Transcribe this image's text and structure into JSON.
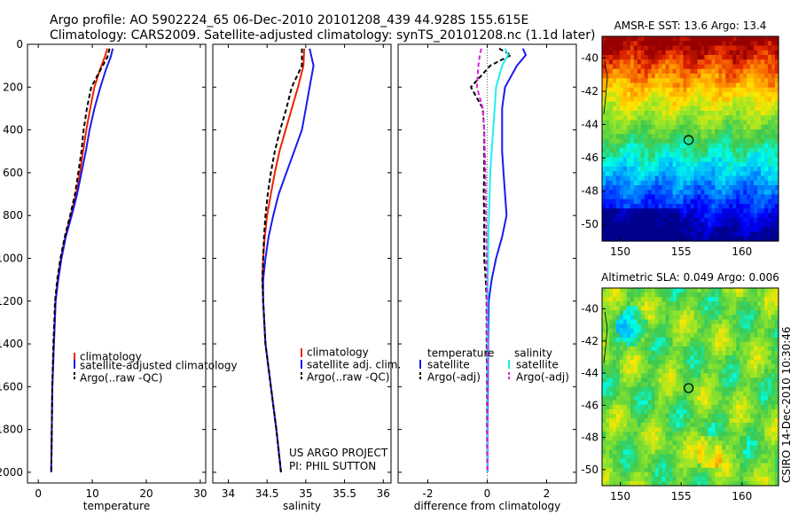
{
  "header": {
    "title_line1": "Argo profile: AO 5902224_65 06-Dec-2010 20101208_439 44.928S 155.615E",
    "title_line2": "Climatology: CARS2009. Satellite-adjusted climatology: synTS_20101208.nc (1.1d later)"
  },
  "colors": {
    "climatology": "#ee2200",
    "satellite": "#1a1aee",
    "argo": "#000000",
    "sal_satellite": "#22eeee",
    "sal_argo": "#dd22dd"
  },
  "credit": {
    "line1": "US ARGO PROJECT",
    "line2": "PI: PHIL SUTTON"
  },
  "side_stamp": "CSIRO 14-Dec-2010 10:30:46",
  "chart_data": [
    {
      "id": "temperature",
      "type": "line",
      "xlabel": "temperature",
      "ylabel": "",
      "xlim": [
        -2,
        31
      ],
      "ylim": [
        2050,
        0
      ],
      "xticks": [
        0,
        10,
        20,
        30
      ],
      "yticks": [
        0,
        200,
        400,
        600,
        800,
        1000,
        1200,
        1400,
        1600,
        1800,
        2000
      ],
      "legend": [
        "climatology",
        "satellite-adjusted climatology",
        "Argo(..raw -QC)"
      ],
      "series": [
        {
          "name": "climatology",
          "color": "#ee2200",
          "dash": "",
          "x": [
            12.8,
            12.3,
            11.4,
            10.4,
            9.6,
            8.9,
            8.3,
            7.7,
            7.0,
            6.0,
            5.0,
            4.2,
            3.6,
            3.2,
            2.9,
            2.6,
            2.5,
            2.4
          ],
          "y": [
            20,
            60,
            120,
            200,
            300,
            400,
            500,
            600,
            700,
            800,
            900,
            1000,
            1100,
            1200,
            1400,
            1600,
            1800,
            2000
          ]
        },
        {
          "name": "satellite-adjusted climatology",
          "color": "#1a1aee",
          "dash": "",
          "x": [
            13.8,
            13.4,
            12.5,
            11.5,
            10.4,
            9.5,
            8.8,
            8.0,
            7.2,
            6.2,
            5.1,
            4.3,
            3.7,
            3.2,
            2.9,
            2.6,
            2.5,
            2.4
          ],
          "y": [
            20,
            60,
            120,
            200,
            300,
            400,
            500,
            600,
            700,
            800,
            900,
            1000,
            1100,
            1200,
            1400,
            1600,
            1800,
            2000
          ]
        },
        {
          "name": "Argo(..raw -QC)",
          "color": "#000000",
          "dash": "5,3",
          "x": [
            13.2,
            12.8,
            11.5,
            9.8,
            9.0,
            8.4,
            8.0,
            7.4,
            6.8,
            5.9,
            4.9,
            4.1,
            3.5,
            3.1,
            2.8,
            2.6,
            2.5,
            2.4
          ],
          "y": [
            20,
            60,
            120,
            200,
            300,
            400,
            500,
            600,
            700,
            800,
            900,
            1000,
            1100,
            1200,
            1400,
            1600,
            1800,
            2000
          ]
        }
      ]
    },
    {
      "id": "salinity",
      "type": "line",
      "xlabel": "salinity",
      "ylabel": "",
      "xlim": [
        33.8,
        36.1
      ],
      "ylim": [
        2050,
        0
      ],
      "xticks": [
        34,
        34.5,
        35,
        35.5,
        36
      ],
      "legend": [
        "climatology",
        "satellite adj. clim.",
        "Argo(..raw -QC)"
      ],
      "series": [
        {
          "name": "climatology",
          "color": "#ee2200",
          "dash": "",
          "x": [
            34.98,
            34.97,
            34.9,
            34.82,
            34.74,
            34.66,
            34.6,
            34.55,
            34.5,
            34.47,
            34.45,
            34.44,
            34.45,
            34.48,
            34.55,
            34.62,
            34.68
          ],
          "y": [
            20,
            100,
            200,
            300,
            400,
            500,
            600,
            700,
            800,
            900,
            1000,
            1100,
            1200,
            1400,
            1600,
            1800,
            2000
          ]
        },
        {
          "name": "satellite adj. clim.",
          "color": "#1a1aee",
          "dash": "",
          "x": [
            35.05,
            35.1,
            35.05,
            35.0,
            34.95,
            34.85,
            34.75,
            34.65,
            34.58,
            34.52,
            34.48,
            34.45,
            34.45,
            34.48,
            34.55,
            34.62,
            34.68
          ],
          "y": [
            20,
            100,
            200,
            300,
            400,
            500,
            600,
            700,
            800,
            900,
            1000,
            1100,
            1200,
            1400,
            1600,
            1800,
            2000
          ]
        },
        {
          "name": "Argo(..raw -QC)",
          "color": "#000000",
          "dash": "5,3",
          "x": [
            34.95,
            34.95,
            34.82,
            34.75,
            34.67,
            34.6,
            34.55,
            34.51,
            34.48,
            34.46,
            34.45,
            34.44,
            34.45,
            34.48,
            34.55,
            34.62,
            34.68
          ],
          "y": [
            20,
            100,
            200,
            300,
            400,
            500,
            600,
            700,
            800,
            900,
            1000,
            1100,
            1200,
            1400,
            1600,
            1800,
            2000
          ]
        }
      ]
    },
    {
      "id": "difference",
      "type": "line",
      "xlabel": "difference from climatology",
      "ylabel": "",
      "xlim": [
        -3,
        3
      ],
      "ylim": [
        2050,
        0
      ],
      "xticks": [
        -2,
        0,
        2
      ],
      "legend_temperature": [
        "temperature",
        "satellite",
        "Argo(-adj)"
      ],
      "legend_salinity": [
        "salinity",
        "satellite",
        "Argo(-adj)"
      ],
      "series": [
        {
          "name": "temperature satellite",
          "color": "#1a1aee",
          "dash": "",
          "x": [
            1.2,
            1.3,
            1.0,
            0.6,
            0.5,
            0.5,
            0.5,
            0.55,
            0.6,
            0.65,
            0.5,
            0.3,
            0.15,
            0.05,
            0.03,
            0.02,
            0.01,
            0.01
          ],
          "y": [
            20,
            50,
            100,
            200,
            300,
            400,
            500,
            600,
            700,
            800,
            900,
            1000,
            1100,
            1200,
            1400,
            1600,
            1800,
            2000
          ]
        },
        {
          "name": "temperature Argo(-adj)",
          "color": "#000000",
          "dash": "5,3",
          "x": [
            0.4,
            0.8,
            0.1,
            -0.55,
            -0.15,
            -0.1,
            -0.1,
            -0.1,
            -0.12,
            -0.1,
            -0.1,
            -0.1,
            -0.05,
            -0.02,
            -0.02,
            -0.01,
            -0.01,
            0.0
          ],
          "y": [
            20,
            50,
            100,
            200,
            300,
            400,
            500,
            600,
            700,
            800,
            900,
            1000,
            1100,
            1200,
            1400,
            1600,
            1800,
            2000
          ]
        },
        {
          "name": "salinity satellite",
          "color": "#22eeee",
          "dash": "",
          "x": [
            0.6,
            0.7,
            0.5,
            0.3,
            0.25,
            0.2,
            0.15,
            0.1,
            0.08,
            0.06,
            0.04,
            0.03,
            0.02,
            0.01,
            0.01,
            0.0,
            0.0,
            0.0
          ],
          "y": [
            20,
            50,
            100,
            200,
            300,
            400,
            500,
            600,
            700,
            800,
            900,
            1000,
            1100,
            1200,
            1400,
            1600,
            1800,
            2000
          ]
        },
        {
          "name": "salinity Argo(-adj)",
          "color": "#dd22dd",
          "dash": "5,3",
          "x": [
            -0.2,
            -0.25,
            -0.3,
            -0.35,
            -0.15,
            -0.1,
            -0.08,
            -0.06,
            -0.05,
            -0.04,
            -0.03,
            -0.02,
            -0.02,
            -0.01,
            -0.01,
            0.0,
            0.0,
            0.0
          ],
          "y": [
            20,
            50,
            100,
            200,
            300,
            400,
            500,
            600,
            700,
            800,
            900,
            1000,
            1100,
            1200,
            1400,
            1600,
            1800,
            2000
          ]
        }
      ]
    },
    {
      "id": "sst_map",
      "type": "heatmap",
      "title": "AMSR-E SST: 13.6  Argo: 13.4",
      "xticks": [
        150,
        155,
        160
      ],
      "yticks": [
        -40,
        -42,
        -44,
        -46,
        -48,
        -50
      ],
      "xlim": [
        148.5,
        163.0
      ],
      "ylim": [
        -51,
        -38.7
      ],
      "marker": {
        "lon": 155.615,
        "lat": -44.928
      }
    },
    {
      "id": "sla_map",
      "type": "heatmap",
      "title": "Altimetric SLA: 0.049  Argo: 0.006",
      "xticks": [
        150,
        155,
        160
      ],
      "yticks": [
        -40,
        -42,
        -44,
        -46,
        -48,
        -50
      ],
      "xlim": [
        148.5,
        163.0
      ],
      "ylim": [
        -51,
        -38.7
      ],
      "marker": {
        "lon": 155.615,
        "lat": -44.928
      }
    }
  ]
}
